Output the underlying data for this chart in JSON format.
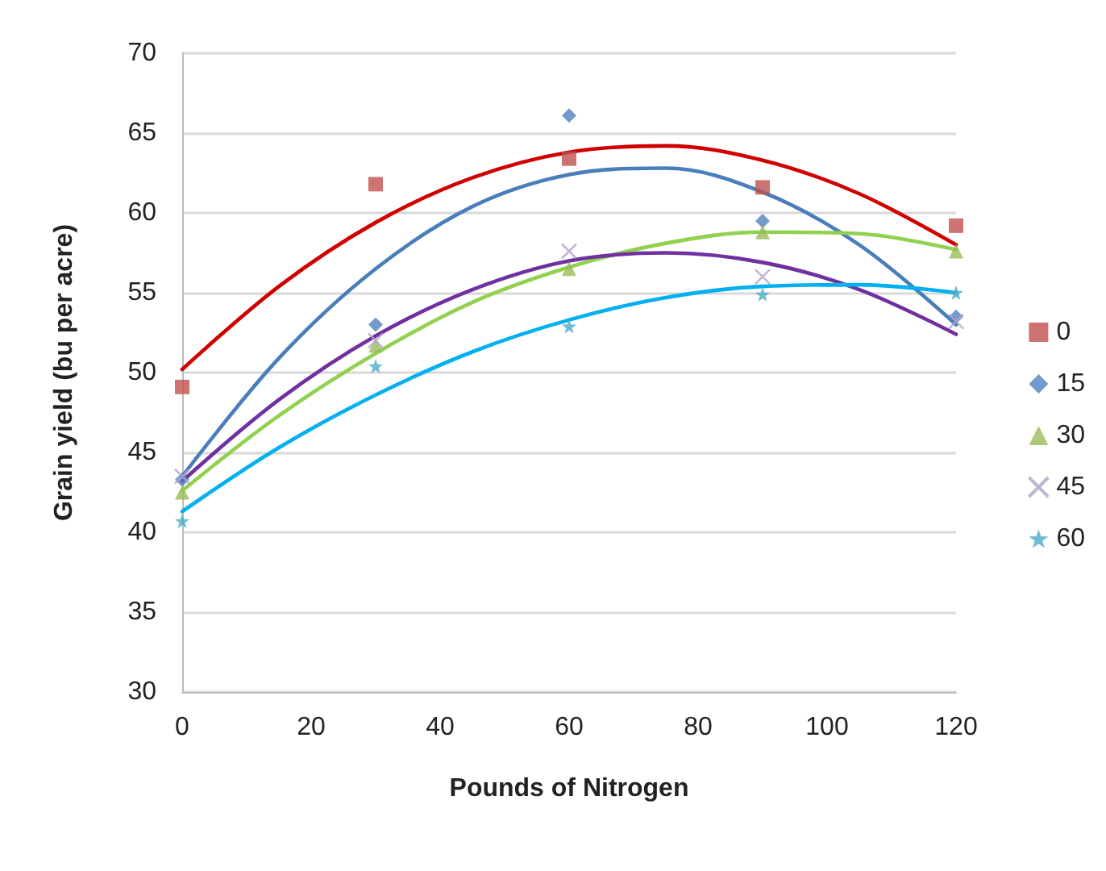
{
  "chart_data": {
    "type": "scatter",
    "xlabel": "Pounds of Nitrogen",
    "ylabel": "Grain yield (bu per acre)",
    "x": [
      0,
      30,
      60,
      90,
      120
    ],
    "xlim": [
      0,
      120
    ],
    "xticks": [
      0,
      20,
      40,
      60,
      80,
      100,
      120
    ],
    "ylim": [
      30,
      70
    ],
    "yticks": [
      30,
      35,
      40,
      45,
      50,
      55,
      60,
      65,
      70
    ],
    "grid": "y",
    "legend": "right",
    "series": [
      {
        "name": "0",
        "color": "#c0504d",
        "marker": "square",
        "values": [
          49.1,
          61.8,
          63.4,
          61.6,
          59.2
        ]
      },
      {
        "name": "15",
        "color": "#4f81bd",
        "marker": "diamond",
        "values": [
          43.3,
          53.0,
          66.1,
          59.5,
          53.5
        ]
      },
      {
        "name": "30",
        "color": "#9bbb59",
        "marker": "triangle",
        "values": [
          42.5,
          51.7,
          56.5,
          58.8,
          57.6
        ]
      },
      {
        "name": "45",
        "color": "#b3a2c7",
        "marker": "cross",
        "values": [
          43.5,
          52.0,
          57.6,
          56.0,
          53.2
        ]
      },
      {
        "name": "60",
        "color": "#4bacc6",
        "marker": "star",
        "values": [
          40.7,
          50.4,
          52.9,
          54.9,
          55.0
        ]
      },
      {
        "type": "line",
        "color": "#d00000",
        "marker": "none",
        "x": [
          0,
          15,
          30,
          45,
          60,
          75,
          90,
          105,
          120
        ],
        "values": [
          50.2,
          55.4,
          59.4,
          62.2,
          63.8,
          64.2,
          63.3,
          61.2,
          58.0
        ]
      },
      {
        "type": "line",
        "color": "#4a7ebb",
        "marker": "none",
        "x": [
          0,
          15,
          30,
          45,
          60,
          75,
          90,
          105,
          120
        ],
        "values": [
          43.5,
          50.9,
          56.5,
          60.4,
          62.4,
          62.8,
          61.3,
          58.0,
          53.0
        ]
      },
      {
        "type": "line",
        "color": "#92d050",
        "marker": "none",
        "x": [
          0,
          15,
          30,
          45,
          60,
          75,
          90,
          105,
          120
        ],
        "values": [
          42.6,
          47.3,
          51.2,
          54.4,
          56.6,
          58.1,
          58.8,
          58.7,
          57.7
        ]
      },
      {
        "type": "line",
        "color": "#7030a0",
        "marker": "none",
        "x": [
          0,
          15,
          30,
          45,
          60,
          75,
          90,
          105,
          120
        ],
        "values": [
          43.2,
          48.3,
          52.3,
          55.2,
          57.0,
          57.5,
          56.9,
          55.2,
          52.4
        ]
      },
      {
        "type": "line",
        "color": "#00b0f0",
        "marker": "none",
        "x": [
          0,
          15,
          30,
          45,
          60,
          75,
          90,
          105,
          120
        ],
        "values": [
          41.3,
          45.3,
          48.6,
          51.3,
          53.3,
          54.7,
          55.4,
          55.5,
          55.0
        ]
      }
    ]
  }
}
